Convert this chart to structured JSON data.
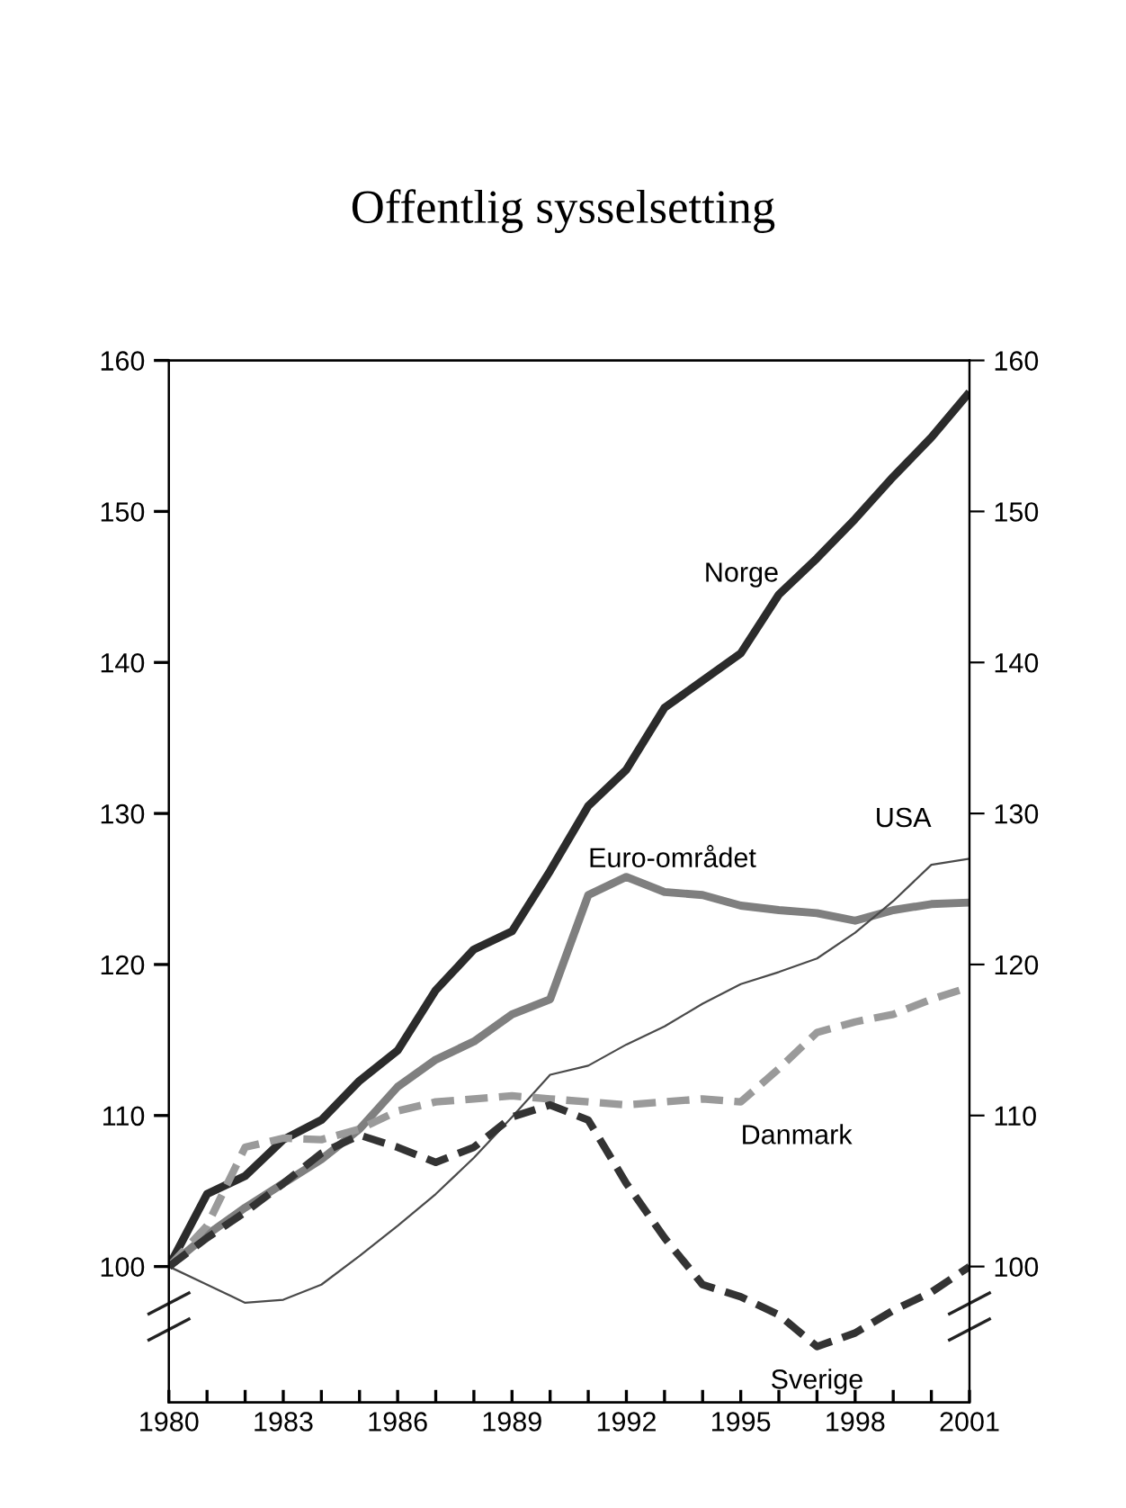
{
  "chart_data": {
    "type": "line",
    "title": "Offentlig sysselsetting",
    "x": [
      1980,
      1981,
      1982,
      1983,
      1984,
      1985,
      1986,
      1987,
      1988,
      1989,
      1990,
      1991,
      1992,
      1993,
      1994,
      1995,
      1996,
      1997,
      1998,
      1999,
      2000,
      2001
    ],
    "series": [
      {
        "name": "Norge",
        "color": "#2b2b2b",
        "line_style": "solid",
        "values": [
          100,
          104.8,
          106,
          108.4,
          109.7,
          112.3,
          114.3,
          118.3,
          121,
          122.2,
          126.2,
          130.5,
          132.9,
          137,
          138.8,
          140.6,
          144.5,
          146.9,
          149.5,
          152.3,
          154.9,
          157.9
        ]
      },
      {
        "name": "Euro-området",
        "color": "#7f7f7f",
        "line_style": "solid",
        "values": [
          100,
          102.1,
          103.9,
          105.5,
          107.1,
          109.1,
          111.9,
          113.7,
          114.9,
          116.7,
          117.7,
          124.6,
          125.8,
          124.8,
          124.6,
          123.9,
          123.6,
          123.4,
          122.9,
          123.6,
          124,
          124.1
        ]
      },
      {
        "name": "USA",
        "color": "#4a4a4a",
        "line_style": "solid",
        "values": [
          100,
          98.8,
          97.6,
          97.8,
          98.8,
          100.7,
          102.7,
          104.8,
          107.2,
          109.9,
          112.7,
          113.3,
          114.7,
          115.9,
          117.4,
          118.7,
          119.5,
          120.4,
          122.1,
          124.2,
          126.6,
          127
        ]
      },
      {
        "name": "Danmark",
        "color": "#9a9a9a",
        "line_style": "dashed",
        "values": [
          100,
          102.7,
          107.9,
          108.5,
          108.4,
          109.1,
          110.3,
          110.9,
          111.1,
          111.3,
          111.1,
          110.9,
          110.7,
          110.9,
          111.1,
          110.9,
          113.1,
          115.5,
          116.2,
          116.7,
          117.7,
          118.5
        ]
      },
      {
        "name": "Sverige",
        "color": "#333333",
        "line_style": "dashed",
        "values": [
          100,
          101.9,
          103.6,
          105.5,
          107.5,
          108.7,
          107.9,
          106.9,
          107.9,
          109.9,
          110.7,
          109.7,
          105.5,
          101.9,
          98.8,
          98,
          96.8,
          94.7,
          95.6,
          97.1,
          98.3,
          100
        ]
      }
    ],
    "xlim": [
      1980,
      2001
    ],
    "xticks": [
      1980,
      {
        "value": 1981,
        "label": null
      },
      {
        "value": 1982,
        "label": null
      },
      1983,
      {
        "value": 1984,
        "label": null
      },
      {
        "value": 1985,
        "label": null
      },
      1986,
      {
        "value": 1987,
        "label": null
      },
      {
        "value": 1988,
        "label": null
      },
      1989,
      {
        "value": 1990,
        "label": null
      },
      {
        "value": 1991,
        "label": null
      },
      1992,
      {
        "value": 1993,
        "label": null
      },
      {
        "value": 1994,
        "label": null
      },
      1995,
      {
        "value": 1996,
        "label": null
      },
      {
        "value": 1997,
        "label": null
      },
      1998,
      {
        "value": 1999,
        "label": null
      },
      {
        "value": 2000,
        "label": null
      },
      2001
    ],
    "ylim": [
      91,
      160
    ],
    "yticks": [
      100,
      110,
      120,
      130,
      140,
      150,
      160
    ],
    "y2lim": [
      91,
      160
    ],
    "y2ticks": [
      100,
      110,
      120,
      130,
      140,
      150,
      160
    ],
    "grid": false,
    "legend": false
  }
}
